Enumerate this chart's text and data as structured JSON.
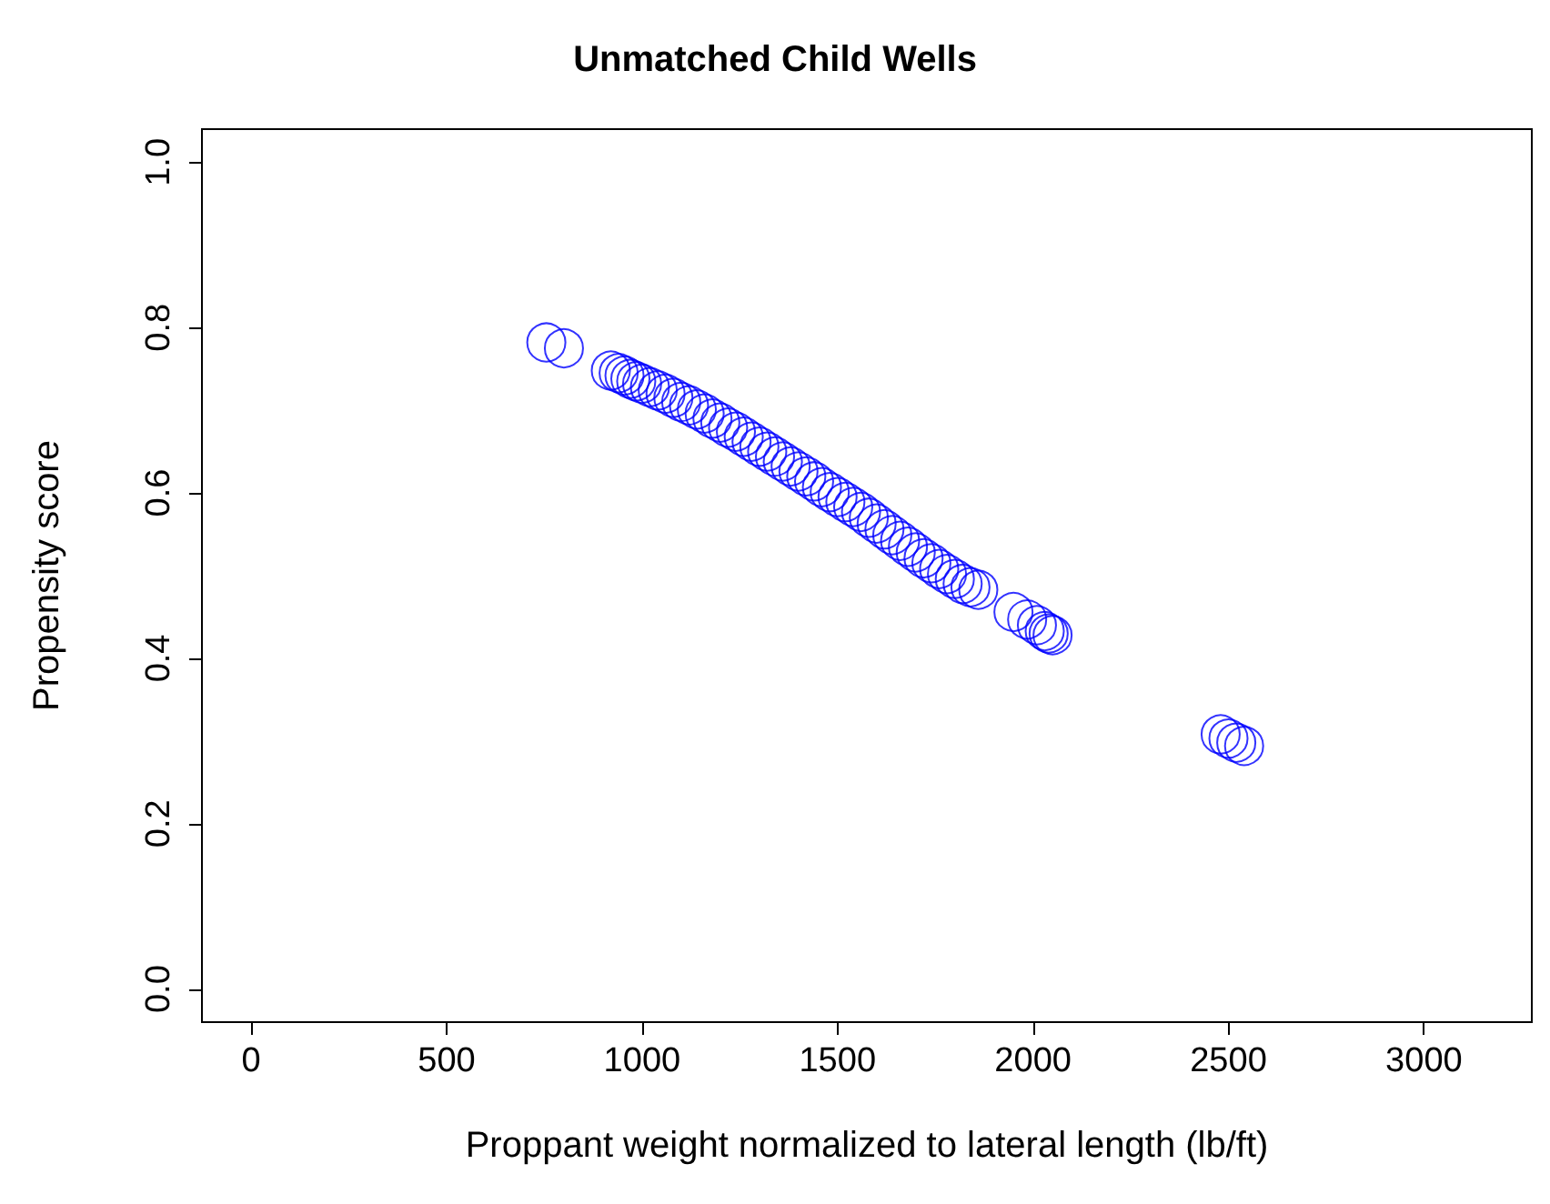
{
  "chart_data": {
    "type": "scatter",
    "title": "Unmatched Child Wells",
    "xlabel": "Proppant weight normalized to lateral length (lb/ft)",
    "ylabel": "Propensity score",
    "xlim": [
      -126,
      3276
    ],
    "ylim": [
      -0.04,
      1.04
    ],
    "xticks": [
      0,
      500,
      1000,
      1500,
      2000,
      2500,
      3000
    ],
    "yticks": [
      {
        "value": 0,
        "label": "0.0"
      },
      0.2,
      0.4,
      0.6,
      0.8,
      {
        "value": 1,
        "label": "1.0"
      }
    ],
    "marker": "circle",
    "grid": false,
    "series": [
      {
        "color": "#0000ff",
        "x": [
          755,
          800,
          920,
          940,
          955,
          970,
          985,
          1000,
          1020,
          1040,
          1060,
          1080,
          1100,
          1120,
          1140,
          1160,
          1180,
          1200,
          1220,
          1240,
          1260,
          1280,
          1300,
          1320,
          1340,
          1360,
          1380,
          1400,
          1420,
          1440,
          1460,
          1480,
          1500,
          1520,
          1540,
          1560,
          1580,
          1600,
          1620,
          1640,
          1660,
          1680,
          1700,
          1720,
          1740,
          1760,
          1780,
          1800,
          1820,
          1840,
          1860,
          1950,
          1985,
          2010,
          2030,
          2040,
          2050,
          2480,
          2500,
          2520,
          2540
        ],
        "values": [
          0.782,
          0.775,
          0.748,
          0.745,
          0.742,
          0.738,
          0.735,
          0.732,
          0.728,
          0.724,
          0.72,
          0.715,
          0.71,
          0.706,
          0.701,
          0.696,
          0.69,
          0.685,
          0.679,
          0.674,
          0.668,
          0.662,
          0.656,
          0.65,
          0.644,
          0.638,
          0.632,
          0.626,
          0.62,
          0.614,
          0.607,
          0.601,
          0.595,
          0.589,
          0.583,
          0.577,
          0.57,
          0.563,
          0.556,
          0.549,
          0.542,
          0.535,
          0.528,
          0.521,
          0.515,
          0.508,
          0.502,
          0.496,
          0.49,
          0.486,
          0.483,
          0.456,
          0.447,
          0.44,
          0.433,
          0.43,
          0.428,
          0.308,
          0.303,
          0.298,
          0.294
        ]
      }
    ]
  }
}
